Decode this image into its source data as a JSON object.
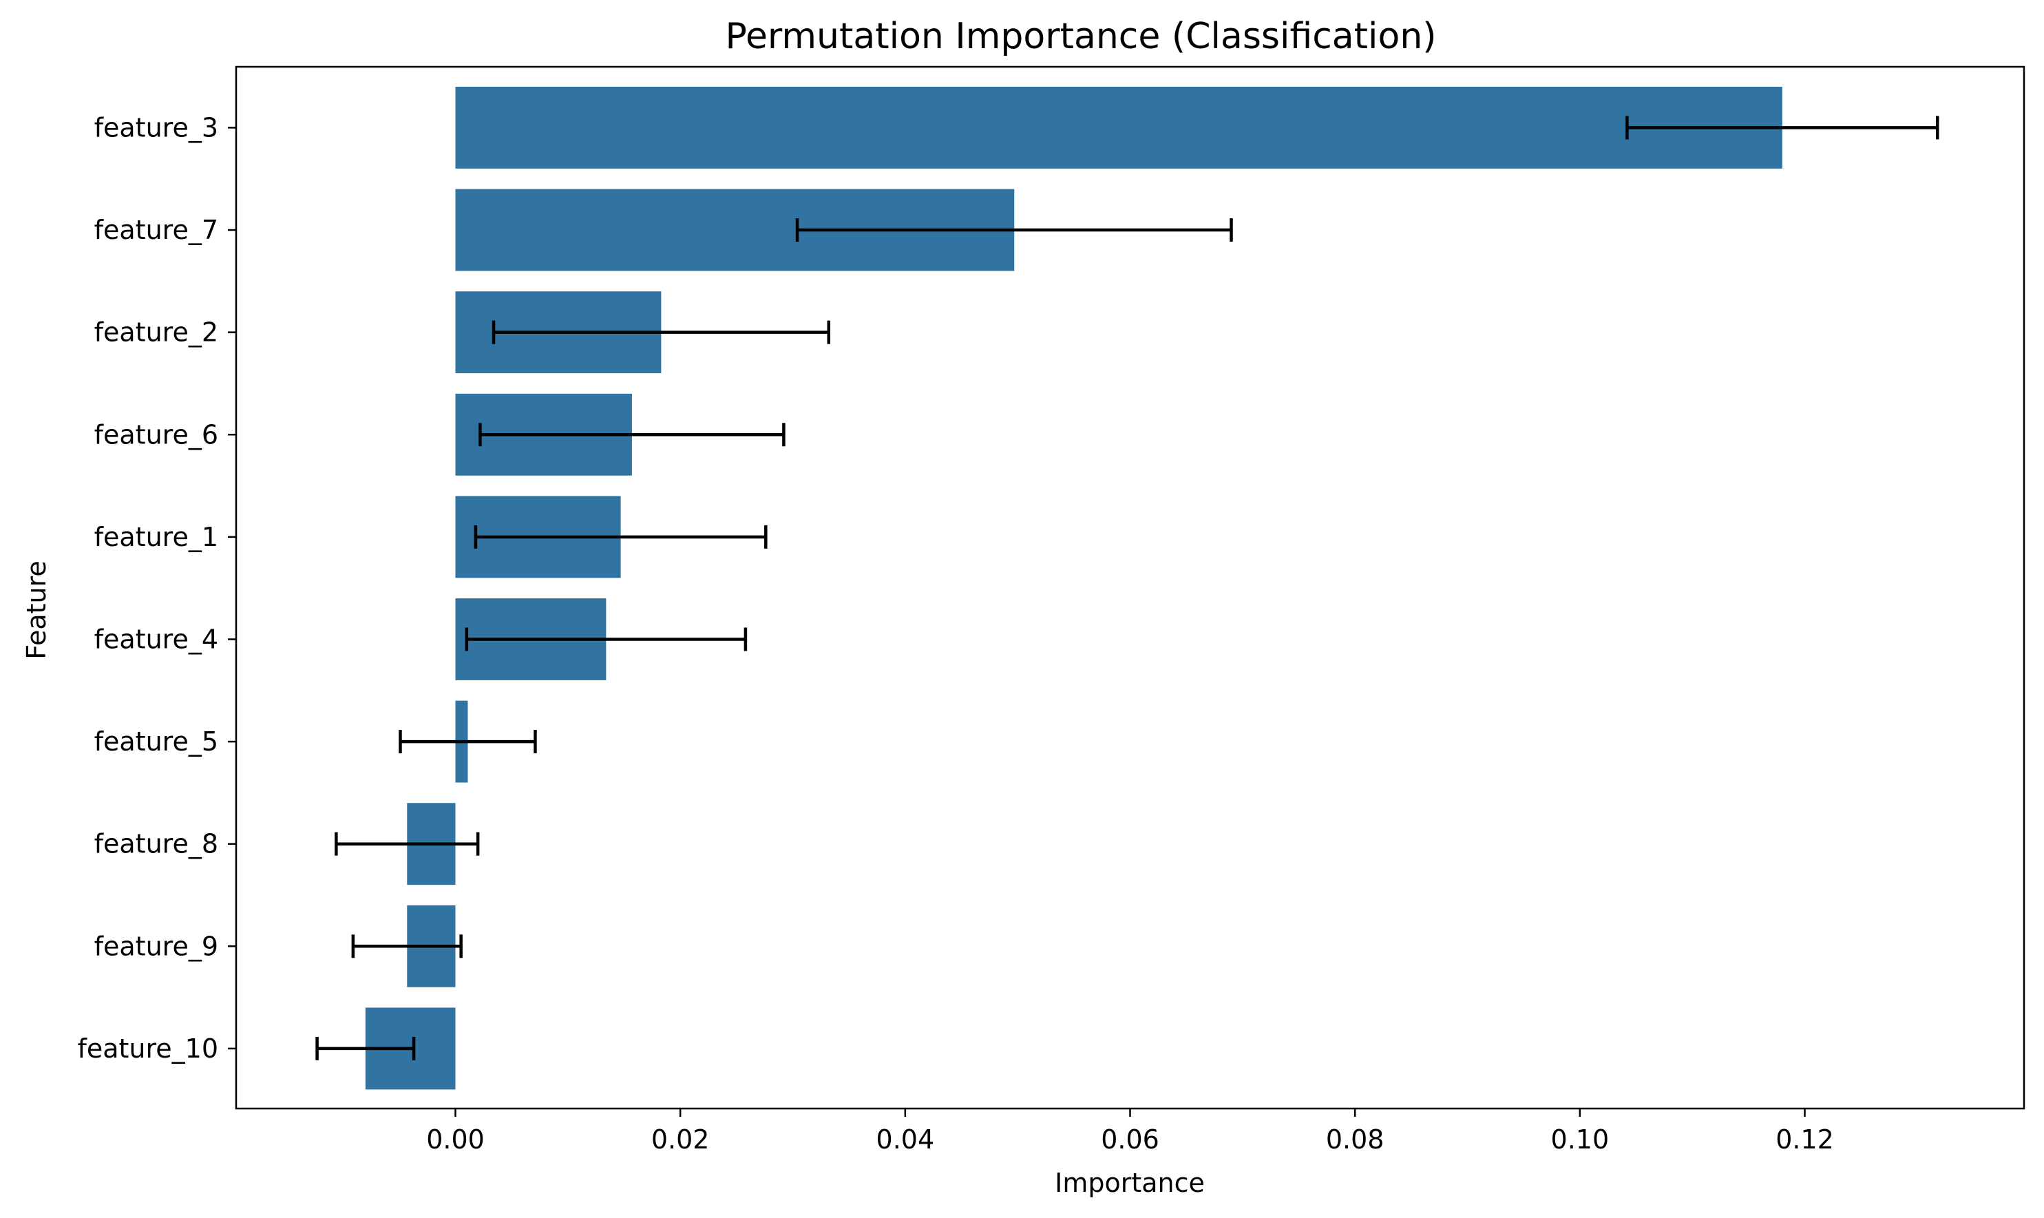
{
  "chart_data": {
    "type": "bar",
    "orientation": "horizontal",
    "title": "Permutation Importance (Classification)",
    "xlabel": "Importance",
    "ylabel": "Feature",
    "xlim": [
      -0.0195,
      0.1395
    ],
    "xticks": [
      0.0,
      0.02,
      0.04,
      0.06,
      0.08,
      0.1,
      0.12
    ],
    "xtick_labels": [
      "0.00",
      "0.02",
      "0.04",
      "0.06",
      "0.08",
      "0.10",
      "0.12"
    ],
    "categories": [
      "feature_3",
      "feature_7",
      "feature_2",
      "feature_6",
      "feature_1",
      "feature_4",
      "feature_5",
      "feature_8",
      "feature_9",
      "feature_10"
    ],
    "values": [
      0.118,
      0.0497,
      0.0183,
      0.0157,
      0.0147,
      0.0134,
      0.0011,
      -0.0043,
      -0.0043,
      -0.008
    ],
    "error": [
      0.0138,
      0.0193,
      0.0149,
      0.0135,
      0.0129,
      0.0124,
      0.006,
      0.0063,
      0.0048,
      0.0043
    ],
    "bar_color": "#3274a1",
    "error_color": "#000000",
    "grid": false,
    "legend": "none"
  }
}
